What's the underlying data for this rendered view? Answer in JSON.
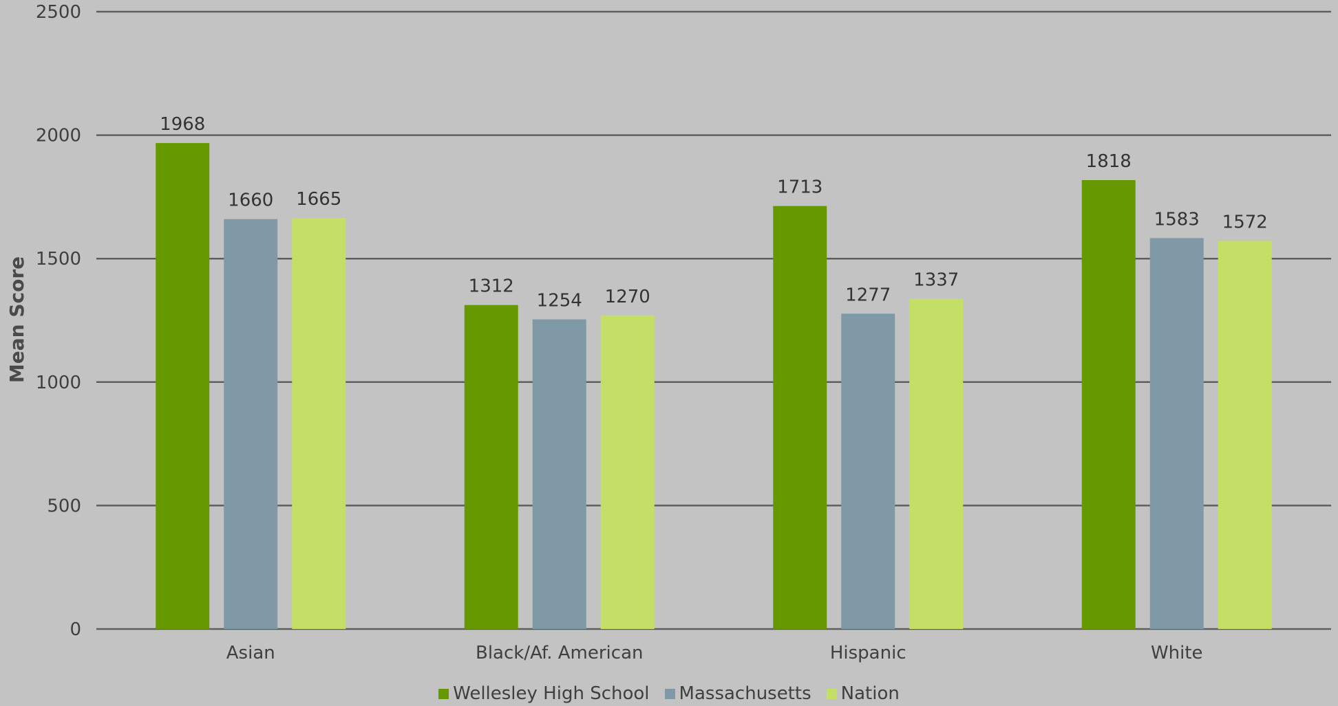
{
  "chart_data": {
    "type": "bar",
    "title": "",
    "xlabel": "",
    "ylabel": "Mean Score",
    "ylim": [
      0,
      2500
    ],
    "yticks": [
      0,
      500,
      1000,
      1500,
      2000,
      2500
    ],
    "grid": true,
    "legend_position": "bottom",
    "categories": [
      "Asian",
      "Black/Af. American",
      "Hispanic",
      "White"
    ],
    "series": [
      {
        "name": "Wellesley High School",
        "color": "#669900",
        "values": [
          1968,
          1312,
          1713,
          1818
        ]
      },
      {
        "name": "Massachusetts",
        "color": "#8099a6",
        "values": [
          1660,
          1254,
          1277,
          1583
        ]
      },
      {
        "name": "Nation",
        "color": "#c5de66",
        "values": [
          1665,
          1270,
          1337,
          1572
        ]
      }
    ]
  }
}
